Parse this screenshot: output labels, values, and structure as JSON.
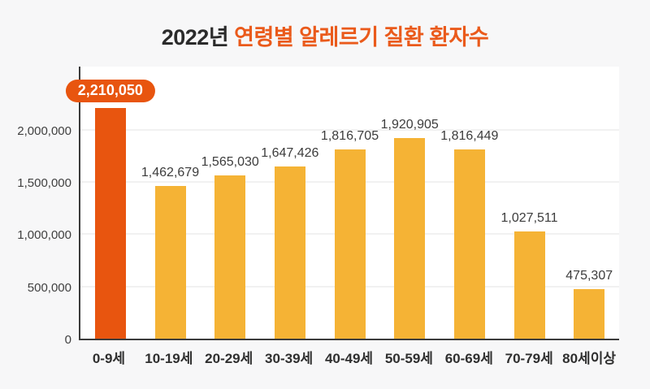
{
  "title": {
    "prefix": "2022년 ",
    "highlight": "연령별 알레르기 질환 환자수"
  },
  "colors": {
    "background": "#f7f7f8",
    "plot_background": "#ffffff",
    "axis": "#3c3c3c",
    "gridline": "#f1f1f1",
    "bar": "#f5b335",
    "highlight_bar": "#e8550f",
    "badge_background": "#e8550f",
    "badge_text": "#ffffff",
    "title_dark": "#2b2b2b",
    "title_accent": "#ea5a1b",
    "label_text": "#3c3c3c"
  },
  "chart_data": {
    "type": "bar",
    "title": "2022년 연령별 알레르기 질환 환자수",
    "xlabel": "",
    "ylabel": "",
    "categories": [
      "0-9세",
      "10-19세",
      "20-29세",
      "30-39세",
      "40-49세",
      "50-59세",
      "60-69세",
      "70-79세",
      "80세이상"
    ],
    "values": [
      2210050,
      1462679,
      1565030,
      1647426,
      1816705,
      1920905,
      1816449,
      1027511,
      475307
    ],
    "value_labels": [
      "2,210,050",
      "1,462,679",
      "1,565,030",
      "1,647,426",
      "1,816,705",
      "1,920,905",
      "1,816,449",
      "1,027,511",
      "475,307"
    ],
    "highlight_index": 0,
    "ylim": [
      0,
      2622000
    ],
    "ytick_values": [
      0,
      500000,
      1000000,
      1500000,
      2000000
    ],
    "ytick_labels": [
      "0",
      "500,000",
      "1,000,000",
      "1,500,000",
      "2,000,000"
    ],
    "grid": true,
    "legend": false
  }
}
